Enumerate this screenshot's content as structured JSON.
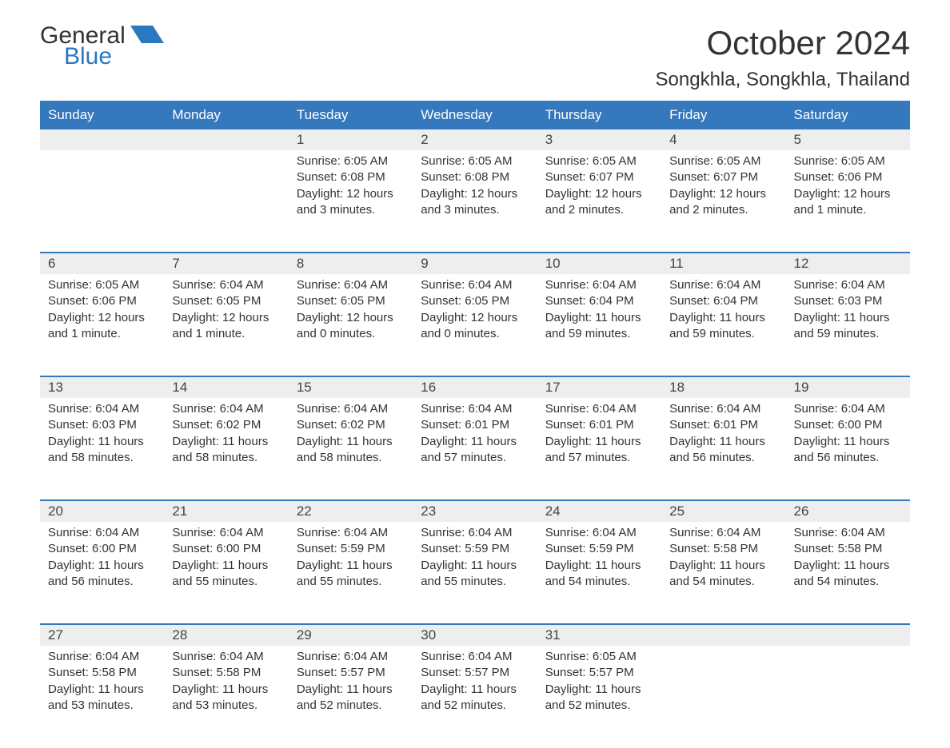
{
  "logo": {
    "general": "General",
    "blue": "Blue",
    "accent_color": "#2b77c0"
  },
  "title": "October 2024",
  "location": "Songkhla, Songkhla, Thailand",
  "colors": {
    "header_bg": "#3478be",
    "header_text": "#ffffff",
    "daynum_bg": "#eeeeee",
    "row_divider": "#3478be",
    "text": "#333333",
    "page_bg": "#ffffff"
  },
  "day_headers": [
    "Sunday",
    "Monday",
    "Tuesday",
    "Wednesday",
    "Thursday",
    "Friday",
    "Saturday"
  ],
  "weeks": [
    [
      null,
      null,
      {
        "n": "1",
        "sunrise": "Sunrise: 6:05 AM",
        "sunset": "Sunset: 6:08 PM",
        "daylight": "Daylight: 12 hours and 3 minutes."
      },
      {
        "n": "2",
        "sunrise": "Sunrise: 6:05 AM",
        "sunset": "Sunset: 6:08 PM",
        "daylight": "Daylight: 12 hours and 3 minutes."
      },
      {
        "n": "3",
        "sunrise": "Sunrise: 6:05 AM",
        "sunset": "Sunset: 6:07 PM",
        "daylight": "Daylight: 12 hours and 2 minutes."
      },
      {
        "n": "4",
        "sunrise": "Sunrise: 6:05 AM",
        "sunset": "Sunset: 6:07 PM",
        "daylight": "Daylight: 12 hours and 2 minutes."
      },
      {
        "n": "5",
        "sunrise": "Sunrise: 6:05 AM",
        "sunset": "Sunset: 6:06 PM",
        "daylight": "Daylight: 12 hours and 1 minute."
      }
    ],
    [
      {
        "n": "6",
        "sunrise": "Sunrise: 6:05 AM",
        "sunset": "Sunset: 6:06 PM",
        "daylight": "Daylight: 12 hours and 1 minute."
      },
      {
        "n": "7",
        "sunrise": "Sunrise: 6:04 AM",
        "sunset": "Sunset: 6:05 PM",
        "daylight": "Daylight: 12 hours and 1 minute."
      },
      {
        "n": "8",
        "sunrise": "Sunrise: 6:04 AM",
        "sunset": "Sunset: 6:05 PM",
        "daylight": "Daylight: 12 hours and 0 minutes."
      },
      {
        "n": "9",
        "sunrise": "Sunrise: 6:04 AM",
        "sunset": "Sunset: 6:05 PM",
        "daylight": "Daylight: 12 hours and 0 minutes."
      },
      {
        "n": "10",
        "sunrise": "Sunrise: 6:04 AM",
        "sunset": "Sunset: 6:04 PM",
        "daylight": "Daylight: 11 hours and 59 minutes."
      },
      {
        "n": "11",
        "sunrise": "Sunrise: 6:04 AM",
        "sunset": "Sunset: 6:04 PM",
        "daylight": "Daylight: 11 hours and 59 minutes."
      },
      {
        "n": "12",
        "sunrise": "Sunrise: 6:04 AM",
        "sunset": "Sunset: 6:03 PM",
        "daylight": "Daylight: 11 hours and 59 minutes."
      }
    ],
    [
      {
        "n": "13",
        "sunrise": "Sunrise: 6:04 AM",
        "sunset": "Sunset: 6:03 PM",
        "daylight": "Daylight: 11 hours and 58 minutes."
      },
      {
        "n": "14",
        "sunrise": "Sunrise: 6:04 AM",
        "sunset": "Sunset: 6:02 PM",
        "daylight": "Daylight: 11 hours and 58 minutes."
      },
      {
        "n": "15",
        "sunrise": "Sunrise: 6:04 AM",
        "sunset": "Sunset: 6:02 PM",
        "daylight": "Daylight: 11 hours and 58 minutes."
      },
      {
        "n": "16",
        "sunrise": "Sunrise: 6:04 AM",
        "sunset": "Sunset: 6:01 PM",
        "daylight": "Daylight: 11 hours and 57 minutes."
      },
      {
        "n": "17",
        "sunrise": "Sunrise: 6:04 AM",
        "sunset": "Sunset: 6:01 PM",
        "daylight": "Daylight: 11 hours and 57 minutes."
      },
      {
        "n": "18",
        "sunrise": "Sunrise: 6:04 AM",
        "sunset": "Sunset: 6:01 PM",
        "daylight": "Daylight: 11 hours and 56 minutes."
      },
      {
        "n": "19",
        "sunrise": "Sunrise: 6:04 AM",
        "sunset": "Sunset: 6:00 PM",
        "daylight": "Daylight: 11 hours and 56 minutes."
      }
    ],
    [
      {
        "n": "20",
        "sunrise": "Sunrise: 6:04 AM",
        "sunset": "Sunset: 6:00 PM",
        "daylight": "Daylight: 11 hours and 56 minutes."
      },
      {
        "n": "21",
        "sunrise": "Sunrise: 6:04 AM",
        "sunset": "Sunset: 6:00 PM",
        "daylight": "Daylight: 11 hours and 55 minutes."
      },
      {
        "n": "22",
        "sunrise": "Sunrise: 6:04 AM",
        "sunset": "Sunset: 5:59 PM",
        "daylight": "Daylight: 11 hours and 55 minutes."
      },
      {
        "n": "23",
        "sunrise": "Sunrise: 6:04 AM",
        "sunset": "Sunset: 5:59 PM",
        "daylight": "Daylight: 11 hours and 55 minutes."
      },
      {
        "n": "24",
        "sunrise": "Sunrise: 6:04 AM",
        "sunset": "Sunset: 5:59 PM",
        "daylight": "Daylight: 11 hours and 54 minutes."
      },
      {
        "n": "25",
        "sunrise": "Sunrise: 6:04 AM",
        "sunset": "Sunset: 5:58 PM",
        "daylight": "Daylight: 11 hours and 54 minutes."
      },
      {
        "n": "26",
        "sunrise": "Sunrise: 6:04 AM",
        "sunset": "Sunset: 5:58 PM",
        "daylight": "Daylight: 11 hours and 54 minutes."
      }
    ],
    [
      {
        "n": "27",
        "sunrise": "Sunrise: 6:04 AM",
        "sunset": "Sunset: 5:58 PM",
        "daylight": "Daylight: 11 hours and 53 minutes."
      },
      {
        "n": "28",
        "sunrise": "Sunrise: 6:04 AM",
        "sunset": "Sunset: 5:58 PM",
        "daylight": "Daylight: 11 hours and 53 minutes."
      },
      {
        "n": "29",
        "sunrise": "Sunrise: 6:04 AM",
        "sunset": "Sunset: 5:57 PM",
        "daylight": "Daylight: 11 hours and 52 minutes."
      },
      {
        "n": "30",
        "sunrise": "Sunrise: 6:04 AM",
        "sunset": "Sunset: 5:57 PM",
        "daylight": "Daylight: 11 hours and 52 minutes."
      },
      {
        "n": "31",
        "sunrise": "Sunrise: 6:05 AM",
        "sunset": "Sunset: 5:57 PM",
        "daylight": "Daylight: 11 hours and 52 minutes."
      },
      null,
      null
    ]
  ]
}
